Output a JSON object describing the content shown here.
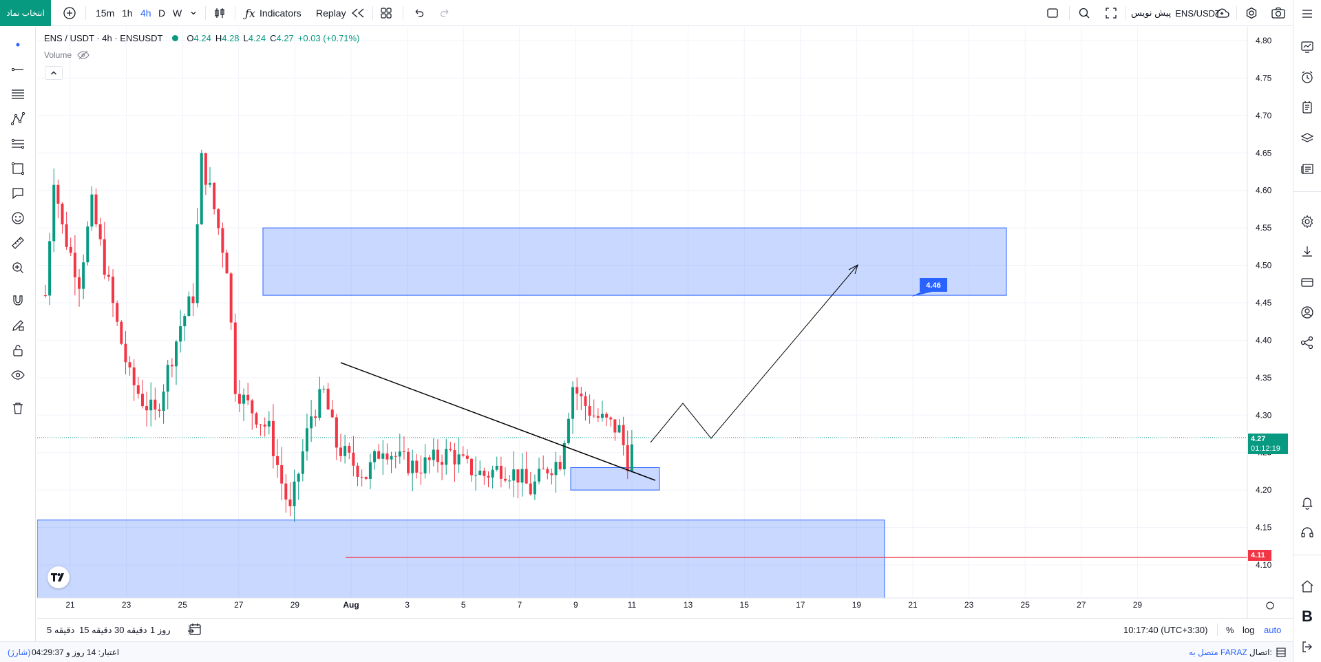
{
  "topbar": {
    "symbol_button": "انتخاب نماد",
    "timeframes": [
      "15m",
      "1h",
      "4h",
      "D",
      "W"
    ],
    "active_timeframe": "4h",
    "indicators_label": "Indicators",
    "replay_label": "Replay",
    "symbol_right": "ENS/USDT",
    "preview_label": "پیش نویس"
  },
  "legend": {
    "title": "ENS / USDT · 4h · ENSUSDT",
    "open_k": "O",
    "open_v": "4.24",
    "high_k": "H",
    "high_v": "4.28",
    "low_k": "L",
    "low_v": "4.24",
    "close_k": "C",
    "close_v": "4.27",
    "change": "+0.03 (+0.71%)",
    "volume_label": "Volume"
  },
  "chart_data": {
    "type": "candlestick",
    "symbol": "ENS / USDT",
    "interval": "4h",
    "y_ticks": [
      "4.80",
      "4.75",
      "4.70",
      "4.65",
      "4.60",
      "4.55",
      "4.50",
      "4.45",
      "4.40",
      "4.35",
      "4.30",
      "4.25",
      "4.20",
      "4.15",
      "4.10"
    ],
    "x_ticks": [
      "21",
      "23",
      "25",
      "27",
      "29",
      "Aug",
      "3",
      "5",
      "7",
      "9",
      "11",
      "13",
      "15",
      "17",
      "19",
      "21",
      "23",
      "25",
      "27",
      "29"
    ],
    "current_price": "4.27",
    "countdown": "01:12:19",
    "horizontal_line_price": "4.11",
    "callout_price": "4.46",
    "zones": [
      {
        "from_price": 4.46,
        "to_price": 4.55
      },
      {
        "from_price": 4.2,
        "to_price": 4.23
      },
      {
        "from_price": 4.05,
        "to_price": 4.16
      }
    ],
    "colors": {
      "up": "#089981",
      "down": "#f23645",
      "zone": "#2962ff",
      "line": "#f23645"
    }
  },
  "bottombar": {
    "ranges": [
      "5 دقیقه",
      "15 دقیقه",
      "30 دقیقه",
      "1 روز"
    ],
    "time": "10:17:40 (UTC+3:30)",
    "percent": "%",
    "log": "log",
    "auto": "auto"
  },
  "statusbar": {
    "connection_label": "اتصال:",
    "connection_value": "متصل به FARAZ",
    "credit_label": "اعتبار: 14 روز و 04:29:37",
    "credit_state": "(شارژ)"
  },
  "icons": {
    "left": [
      "cursor-dot-icon",
      "trend-line-icon",
      "fib-lines-icon",
      "pattern-icon",
      "channel-icon",
      "rectangle-icon",
      "callout-icon",
      "emoji-icon",
      "ruler-icon",
      "zoom-in-icon",
      "magnet-icon",
      "pencil-lock-icon",
      "lock-icon",
      "eye-icon",
      "trash-icon"
    ],
    "right": [
      "menu-icon",
      "watchlist-icon",
      "alert-clock-icon",
      "notes-icon",
      "layers-icon",
      "news-icon",
      "settings-icon",
      "download-icon",
      "wallet-icon",
      "user-icon",
      "share-icon",
      "bell-icon",
      "headset-icon",
      "home-icon",
      "bold-b-icon",
      "logout-icon"
    ]
  }
}
